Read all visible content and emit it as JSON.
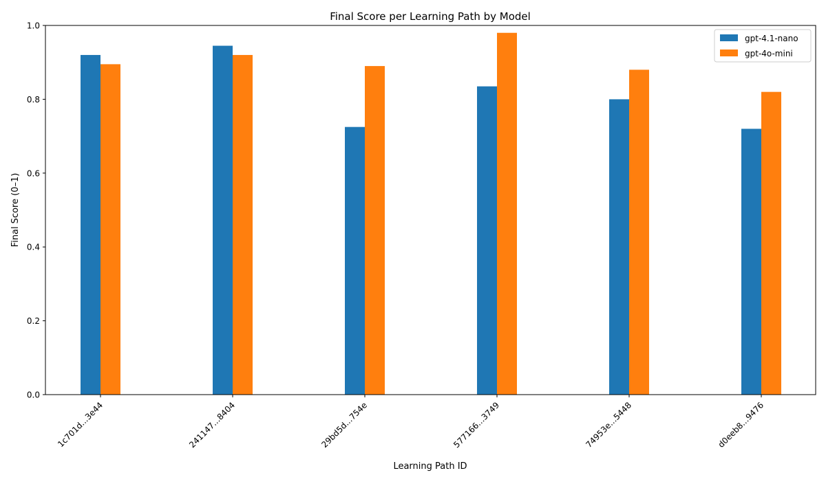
{
  "chart_data": {
    "type": "bar",
    "title": "Final Score per Learning Path by Model",
    "xlabel": "Learning Path ID",
    "ylabel": "Final Score (0–1)",
    "categories": [
      "1c701d...3e44",
      "241147...8404",
      "29bd5d...754e",
      "577166...3749",
      "74953e...5448",
      "d0eeb8...9476"
    ],
    "series": [
      {
        "name": "gpt-4.1-nano",
        "color": "#1f77b4",
        "values": [
          0.92,
          0.945,
          0.725,
          0.835,
          0.8,
          0.72
        ]
      },
      {
        "name": "gpt-4o-mini",
        "color": "#ff7f0e",
        "values": [
          0.895,
          0.92,
          0.89,
          0.98,
          0.88,
          0.82
        ]
      }
    ],
    "ylim": [
      0,
      1.0
    ],
    "yticks": [
      0.0,
      0.2,
      0.4,
      0.6,
      0.8,
      1.0
    ],
    "ytick_labels": [
      "0.0",
      "0.2",
      "0.4",
      "0.6",
      "0.8",
      "1.0"
    ],
    "grid": false,
    "legend_position": "top-right"
  }
}
